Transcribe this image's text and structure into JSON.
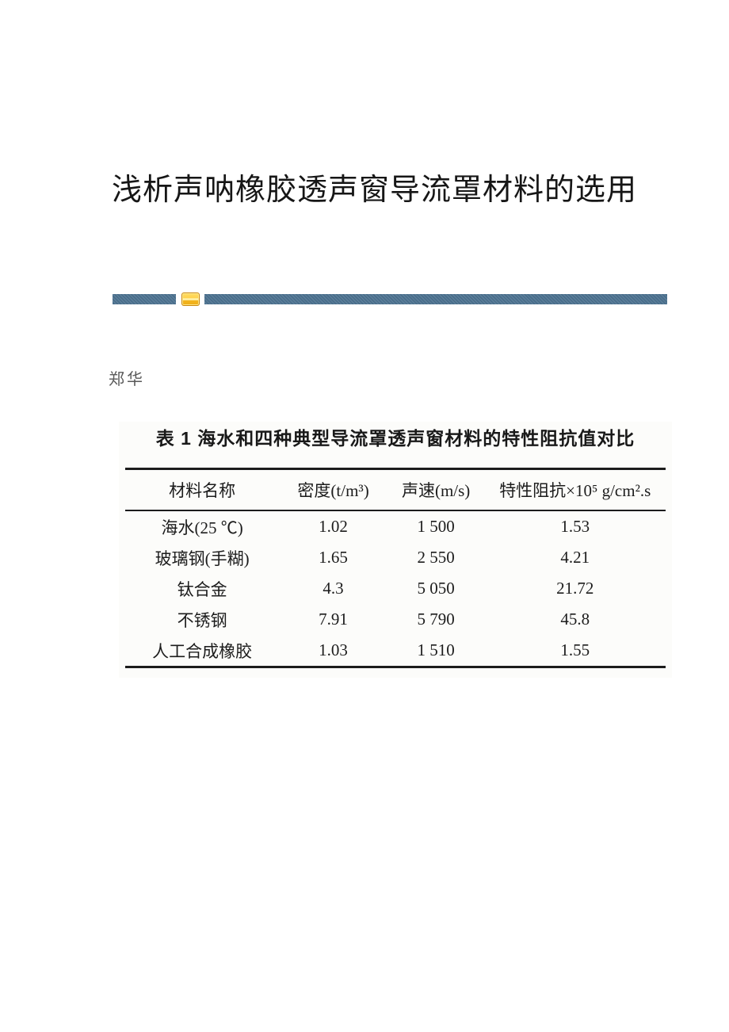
{
  "document": {
    "title": "浅析声呐橡胶透声窗导流罩材料的选用",
    "author": "郑华"
  },
  "divider": {
    "bar_color": "#4d7391",
    "icon": "gold-ornament-icon",
    "icon_color": "#ffd24d",
    "icon_border_color": "#c8860d"
  },
  "table": {
    "caption": "表 1 海水和四种典型导流罩透声窗材料的特性阻抗值对比",
    "headers": [
      "材料名称",
      "密度(t/m³)",
      "声速(m/s)",
      "特性阻抗×10⁵ g/cm².s"
    ],
    "rows": [
      [
        "海水(25 ℃)",
        "1.02",
        "1 500",
        "1.53"
      ],
      [
        "玻璃钢(手糊)",
        "1.65",
        "2 550",
        "4.21"
      ],
      [
        "钛合金",
        "4.3",
        "5 050",
        "21.72"
      ],
      [
        "不锈钢",
        "7.91",
        "5 790",
        "45.8"
      ],
      [
        "人工合成橡胶",
        "1.03",
        "1 510",
        "1.55"
      ]
    ]
  }
}
